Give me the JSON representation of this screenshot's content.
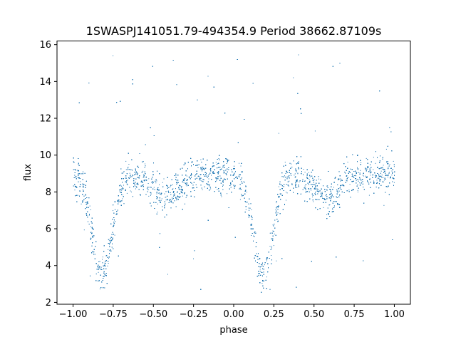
{
  "chart_data": {
    "type": "scatter",
    "title": "1SWASPJ141051.79-494354.9 Period 38662.87109s",
    "xlabel": "phase",
    "ylabel": "flux",
    "xlim": [
      -1.1,
      1.1
    ],
    "ylim": [
      1.9,
      16.2
    ],
    "xticks": [
      -1.0,
      -0.75,
      -0.5,
      -0.25,
      0.0,
      0.25,
      0.5,
      0.75,
      1.0
    ],
    "xtick_labels": [
      "−1.00",
      "−0.75",
      "−0.50",
      "−0.25",
      "0.00",
      "0.25",
      "0.50",
      "0.75",
      "1.00"
    ],
    "yticks": [
      2,
      4,
      6,
      8,
      10,
      12,
      14,
      16
    ],
    "ytick_labels": [
      "2",
      "4",
      "6",
      "8",
      "10",
      "12",
      "14",
      "16"
    ],
    "grid": false,
    "marker_color": "#1f77b4",
    "x_range": [
      -1.0,
      1.0
    ],
    "baseline_flux": 9.0,
    "baseline_scatter": 0.9,
    "upper_outlier_max": 15.5,
    "lower_outlier_min": 2.5,
    "eclipses": [
      {
        "center": -0.82,
        "min_flux": 3.5,
        "half_width": 0.09
      },
      {
        "center": 0.18,
        "min_flux": 3.5,
        "half_width": 0.09
      }
    ],
    "secondary_dips": [
      {
        "center": -0.42,
        "min_flux": 7.8,
        "half_width": 0.12
      },
      {
        "center": 0.58,
        "min_flux": 7.8,
        "half_width": 0.12
      }
    ]
  }
}
